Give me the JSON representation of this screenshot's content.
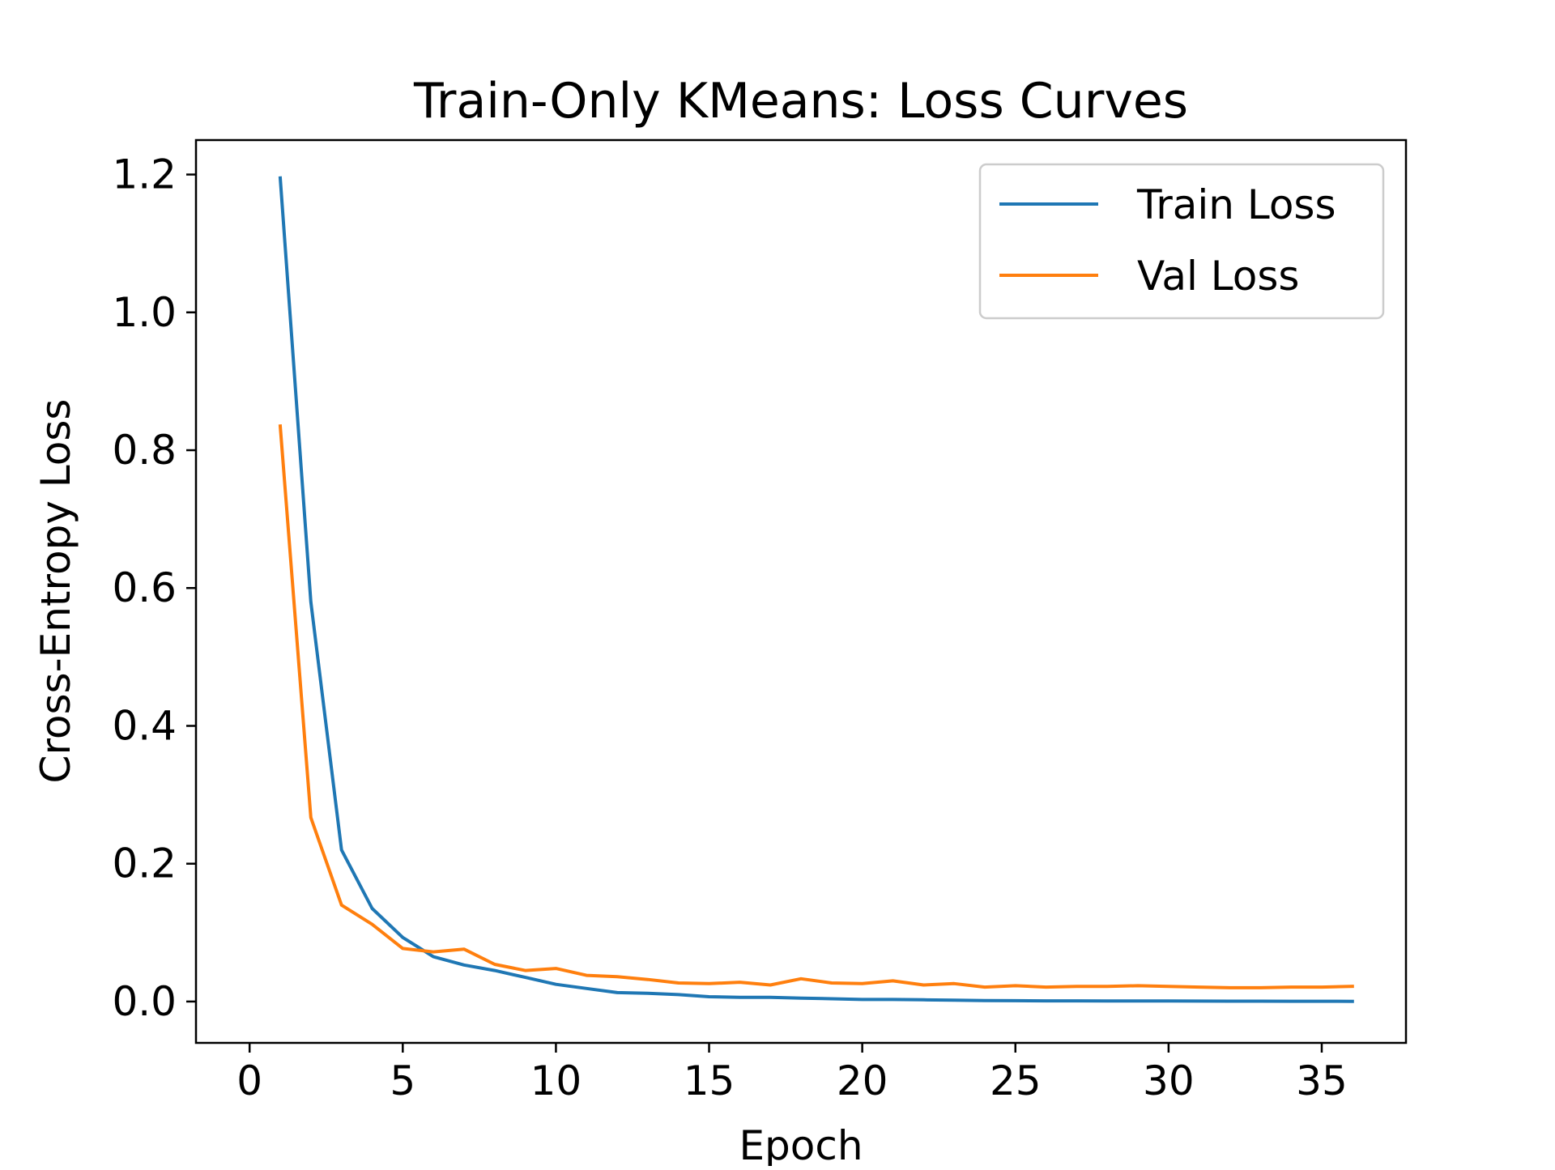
{
  "chart_data": {
    "type": "line",
    "title": "Train-Only KMeans: Loss Curves",
    "xlabel": "Epoch",
    "ylabel": "Cross-Entropy Loss",
    "xlim": [
      -1.75,
      37.75
    ],
    "ylim": [
      -0.06,
      1.25
    ],
    "xticks": [
      0,
      5,
      10,
      15,
      20,
      25,
      30,
      35
    ],
    "xtick_labels": [
      "0",
      "5",
      "10",
      "15",
      "20",
      "25",
      "30",
      "35"
    ],
    "yticks": [
      0.0,
      0.2,
      0.4,
      0.6,
      0.8,
      1.0,
      1.2
    ],
    "ytick_labels": [
      "0.0",
      "0.2",
      "0.4",
      "0.6",
      "0.8",
      "1.0",
      "1.2"
    ],
    "grid": false,
    "legend_position": "top-right",
    "x": [
      1,
      2,
      3,
      4,
      5,
      6,
      7,
      8,
      9,
      10,
      11,
      12,
      13,
      14,
      15,
      16,
      17,
      18,
      19,
      20,
      21,
      22,
      23,
      24,
      25,
      26,
      27,
      28,
      29,
      30,
      31,
      32,
      33,
      34,
      35,
      36
    ],
    "series": [
      {
        "name": "Train Loss",
        "color": "#1f77b4",
        "values": [
          1.195,
          0.58,
          0.22,
          0.135,
          0.093,
          0.065,
          0.053,
          0.045,
          0.035,
          0.025,
          0.019,
          0.013,
          0.012,
          0.01,
          0.007,
          0.006,
          0.006,
          0.005,
          0.004,
          0.003,
          0.003,
          0.0025,
          0.002,
          0.0015,
          0.0012,
          0.001,
          0.001,
          0.0009,
          0.0008,
          0.0007,
          0.0006,
          0.0005,
          0.0005,
          0.0004,
          0.0004,
          0.0003
        ]
      },
      {
        "name": "Val Loss",
        "color": "#ff7f0e",
        "values": [
          0.835,
          0.267,
          0.14,
          0.112,
          0.077,
          0.072,
          0.076,
          0.054,
          0.045,
          0.048,
          0.038,
          0.036,
          0.032,
          0.027,
          0.026,
          0.028,
          0.024,
          0.033,
          0.027,
          0.026,
          0.03,
          0.024,
          0.026,
          0.021,
          0.023,
          0.021,
          0.022,
          0.022,
          0.023,
          0.022,
          0.021,
          0.02,
          0.02,
          0.021,
          0.021,
          0.022
        ]
      }
    ]
  }
}
